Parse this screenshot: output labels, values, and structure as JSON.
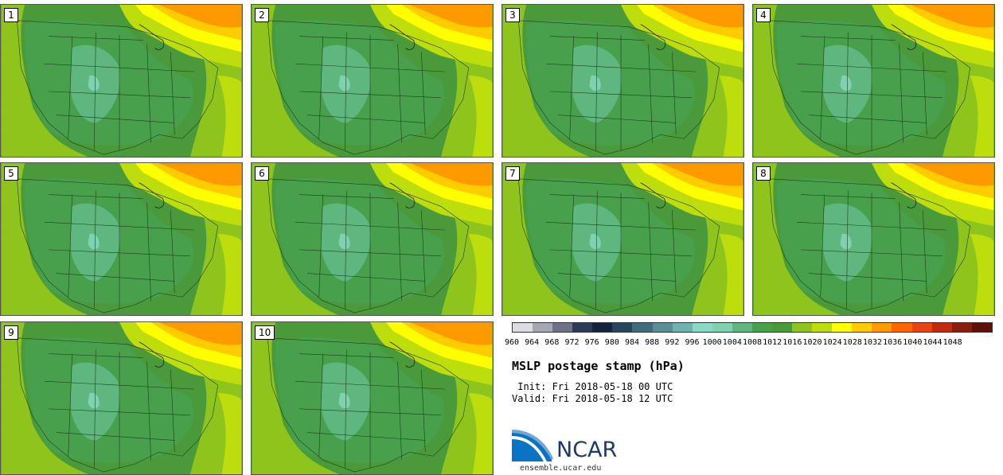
{
  "panels": [
    {
      "label": "1"
    },
    {
      "label": "2"
    },
    {
      "label": "3"
    },
    {
      "label": "4"
    },
    {
      "label": "5"
    },
    {
      "label": "6"
    },
    {
      "label": "7"
    },
    {
      "label": "8"
    },
    {
      "label": "9"
    },
    {
      "label": "10"
    }
  ],
  "colorbar": {
    "colors": [
      "#dcdde3",
      "#a5a7b4",
      "#6e7188",
      "#2e3a5a",
      "#14243f",
      "#27455f",
      "#426b7d",
      "#5b8f97",
      "#72b2ad",
      "#8bd8c6",
      "#80d1b0",
      "#5fb77f",
      "#48a04c",
      "#4a9a3c",
      "#8fc41c",
      "#bedd0c",
      "#ffff00",
      "#ffcc00",
      "#ff9900",
      "#ff6600",
      "#e84411",
      "#c02a0e",
      "#8a1e0e",
      "#5b1208"
    ],
    "ticks": [
      "960",
      "964",
      "968",
      "972",
      "976",
      "980",
      "984",
      "988",
      "992",
      "996",
      "1000",
      "1004",
      "1008",
      "1012",
      "1016",
      "1020",
      "1024",
      "1028",
      "1032",
      "1036",
      "1040",
      "1044",
      "1048"
    ]
  },
  "info": {
    "title": "MSLP postage stamp (hPa)",
    "init": " Init: Fri 2018-05-18 00 UTC",
    "valid": "Valid: Fri 2018-05-18 12 UTC"
  },
  "logo": {
    "name": "NCAR",
    "site": "ensemble.ucar.edu"
  }
}
